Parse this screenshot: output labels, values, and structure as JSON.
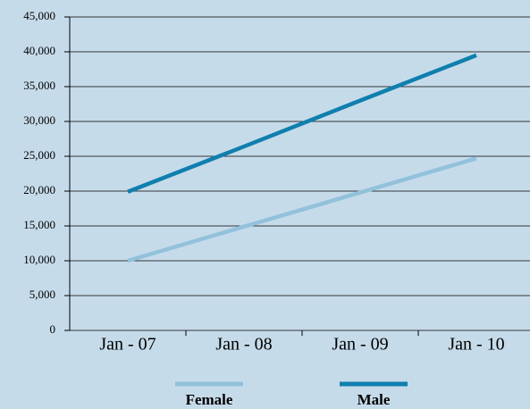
{
  "chart_data": {
    "type": "line",
    "categories": [
      "Jan - 07",
      "Jan - 08",
      "Jan - 09",
      "Jan - 10"
    ],
    "series": [
      {
        "name": "Female",
        "color": "#92c1db",
        "values": [
          10000,
          14900,
          19800,
          24700
        ]
      },
      {
        "name": "Male",
        "color": "#0f7fae",
        "values": [
          19900,
          26400,
          33000,
          39500
        ]
      }
    ],
    "ylim": [
      0,
      45000
    ],
    "yticks": [
      0,
      {
        "value": 5000,
        "label": "5,000"
      },
      {
        "value": 10000,
        "label": "10,000"
      },
      {
        "value": 15000,
        "label": "15,000"
      },
      {
        "value": 20000,
        "label": "20,000"
      },
      {
        "value": 25000,
        "label": "25,000"
      },
      {
        "value": 30000,
        "label": "30,000"
      },
      {
        "value": 35000,
        "label": "35,000"
      },
      {
        "value": 40000,
        "label": "40,000"
      },
      {
        "value": 45000,
        "label": "45,000"
      }
    ],
    "grid": true,
    "legend": "bottom"
  }
}
